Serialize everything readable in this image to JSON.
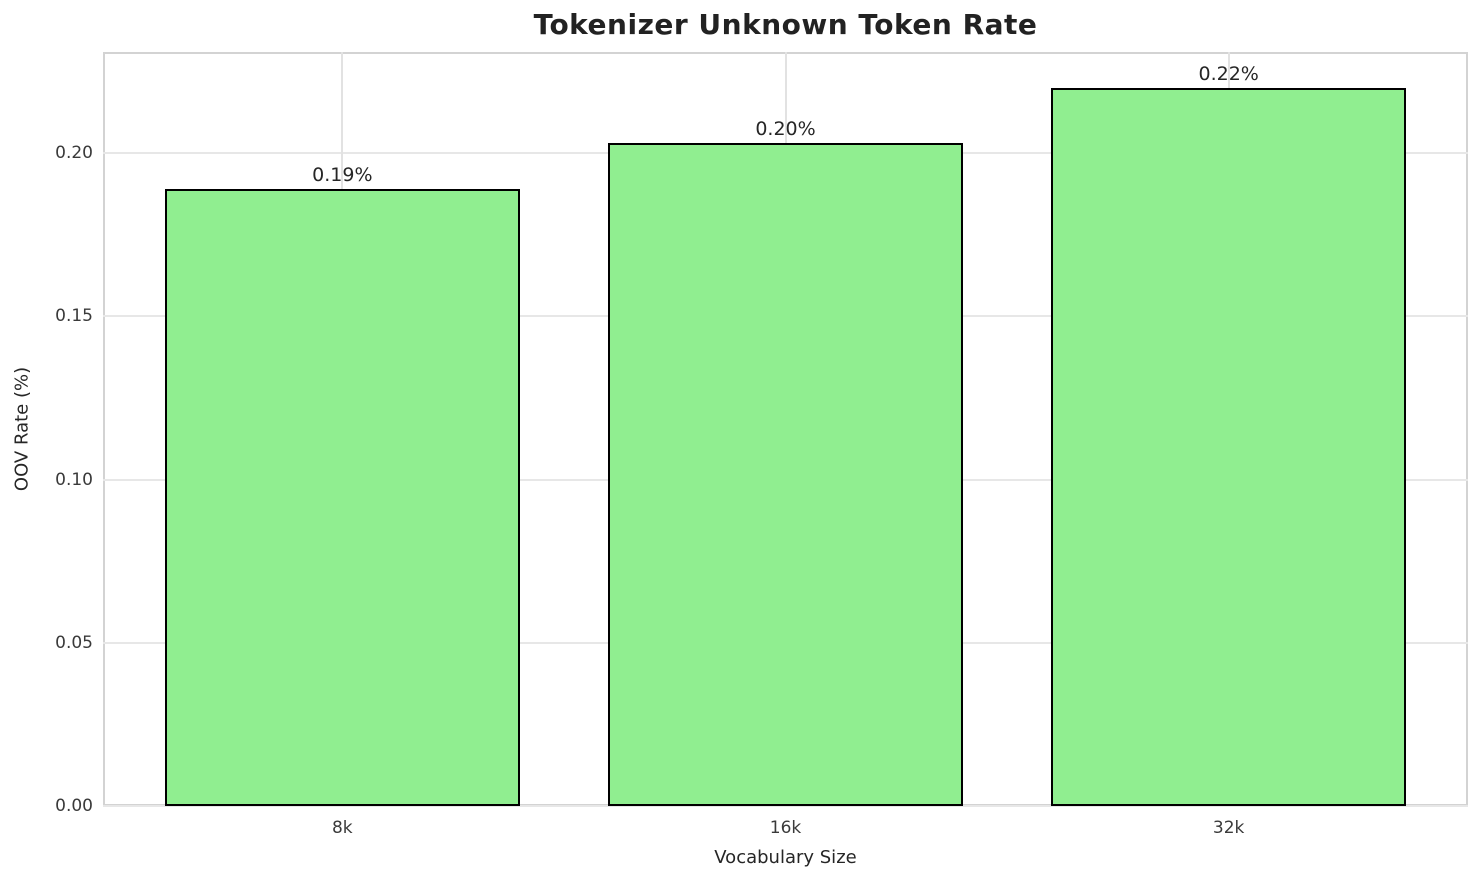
{
  "chart_data": {
    "type": "bar",
    "title": "Tokenizer Unknown Token Rate",
    "xlabel": "Vocabulary Size",
    "ylabel": "OOV Rate (%)",
    "categories": [
      "8k",
      "16k",
      "32k"
    ],
    "values": [
      0.189,
      0.203,
      0.22
    ],
    "bar_labels": [
      "0.19%",
      "0.20%",
      "0.22%"
    ],
    "yticks": [
      0.0,
      0.05,
      0.1,
      0.15,
      0.2
    ],
    "ytick_labels": [
      "0.00",
      "0.05",
      "0.10",
      "0.15",
      "0.20"
    ],
    "ylim": [
      0,
      0.231
    ],
    "grid": true,
    "legend": "none",
    "colors": {
      "bar_fill": "#90EE90",
      "bar_edge": "#000000",
      "grid": "#e7e7e7",
      "spine": "#d3d3d3",
      "text": "#262626",
      "tick_text": "#3a3a3a",
      "background": "#ffffff"
    }
  }
}
